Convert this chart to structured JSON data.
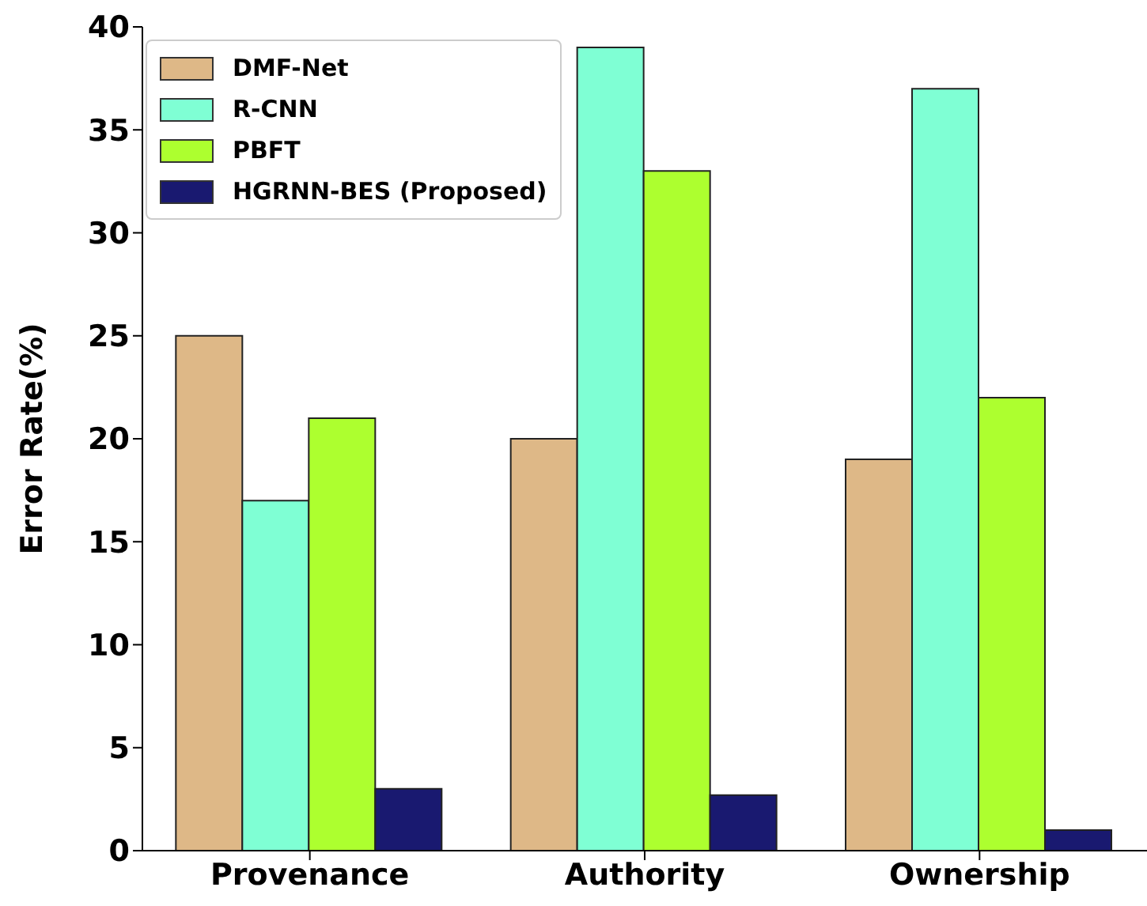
{
  "chart_data": {
    "type": "bar",
    "ylabel": "Error Rate(%)",
    "categories": [
      "Provenance",
      "Authority",
      "Ownership"
    ],
    "series": [
      {
        "name": "DMF-Net",
        "color": "#deb887",
        "values": [
          25,
          20,
          19
        ]
      },
      {
        "name": "R-CNN",
        "color": "#7fffd4",
        "values": [
          17,
          39,
          37
        ]
      },
      {
        "name": "PBFT",
        "color": "#adff2f",
        "values": [
          21,
          33,
          22
        ]
      },
      {
        "name": "HGRNN-BES (Proposed)",
        "color": "#191970",
        "values": [
          3,
          2.7,
          1
        ]
      }
    ],
    "ylim": [
      0,
      40
    ],
    "yticks": [
      0,
      5,
      10,
      15,
      20,
      25,
      30,
      35,
      40
    ],
    "grid": false,
    "legend": "top left"
  }
}
